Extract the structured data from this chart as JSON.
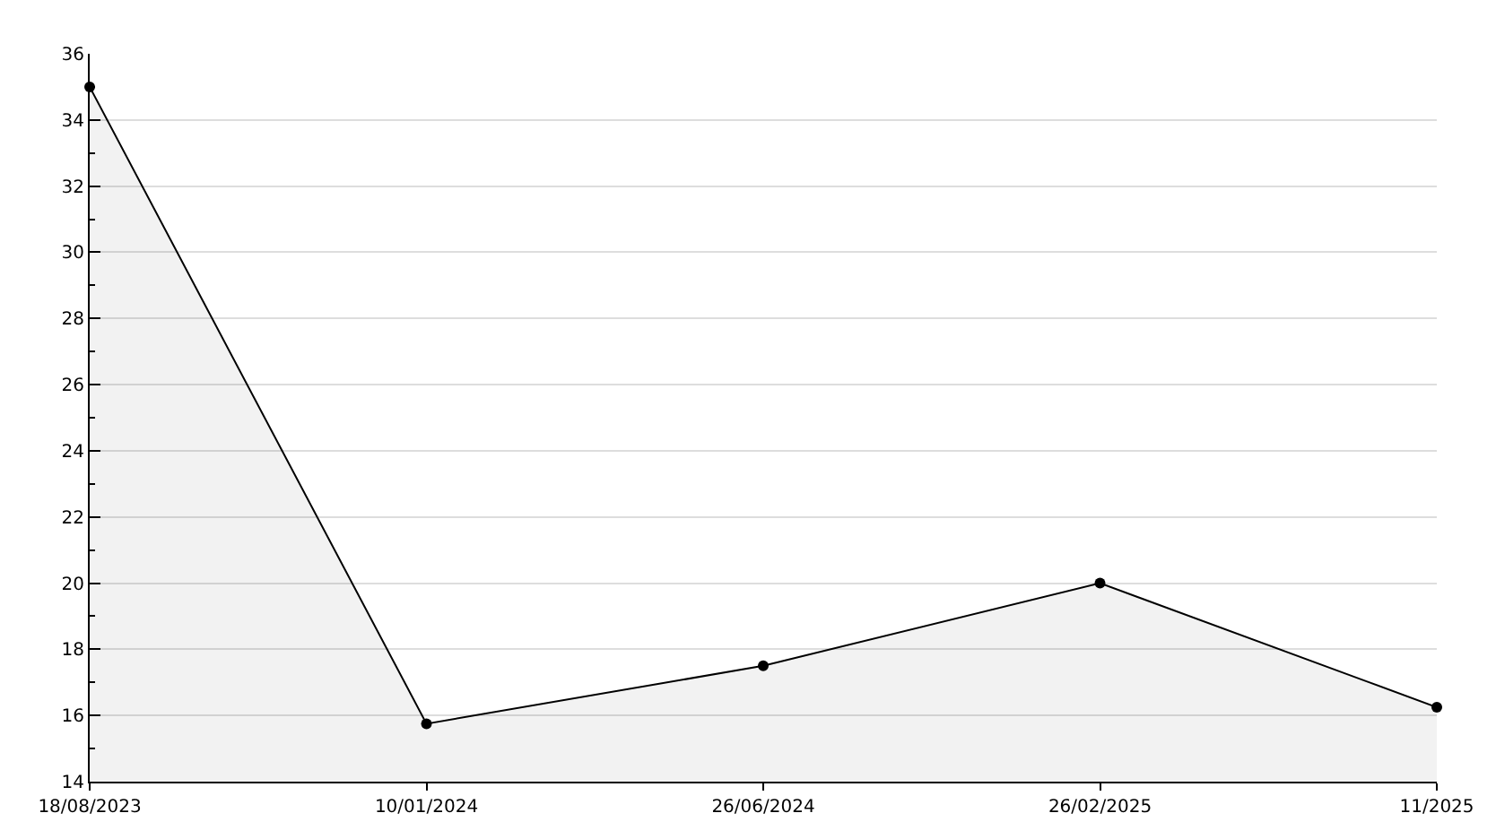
{
  "chart_data": {
    "type": "area",
    "categories": [
      "18/08/2023",
      "10/01/2024",
      "26/06/2024",
      "26/02/2025",
      "11/2025"
    ],
    "series": [
      {
        "color": "#000000",
        "values": [
          35,
          15.75,
          17.5,
          20,
          16.25
        ]
      }
    ],
    "ylim": [
      14,
      36
    ],
    "yticks": [
      14,
      16,
      18,
      20,
      22,
      24,
      26,
      28,
      30,
      32,
      34,
      36
    ],
    "grid": "y",
    "marker": "circle",
    "line_style": "solid"
  }
}
